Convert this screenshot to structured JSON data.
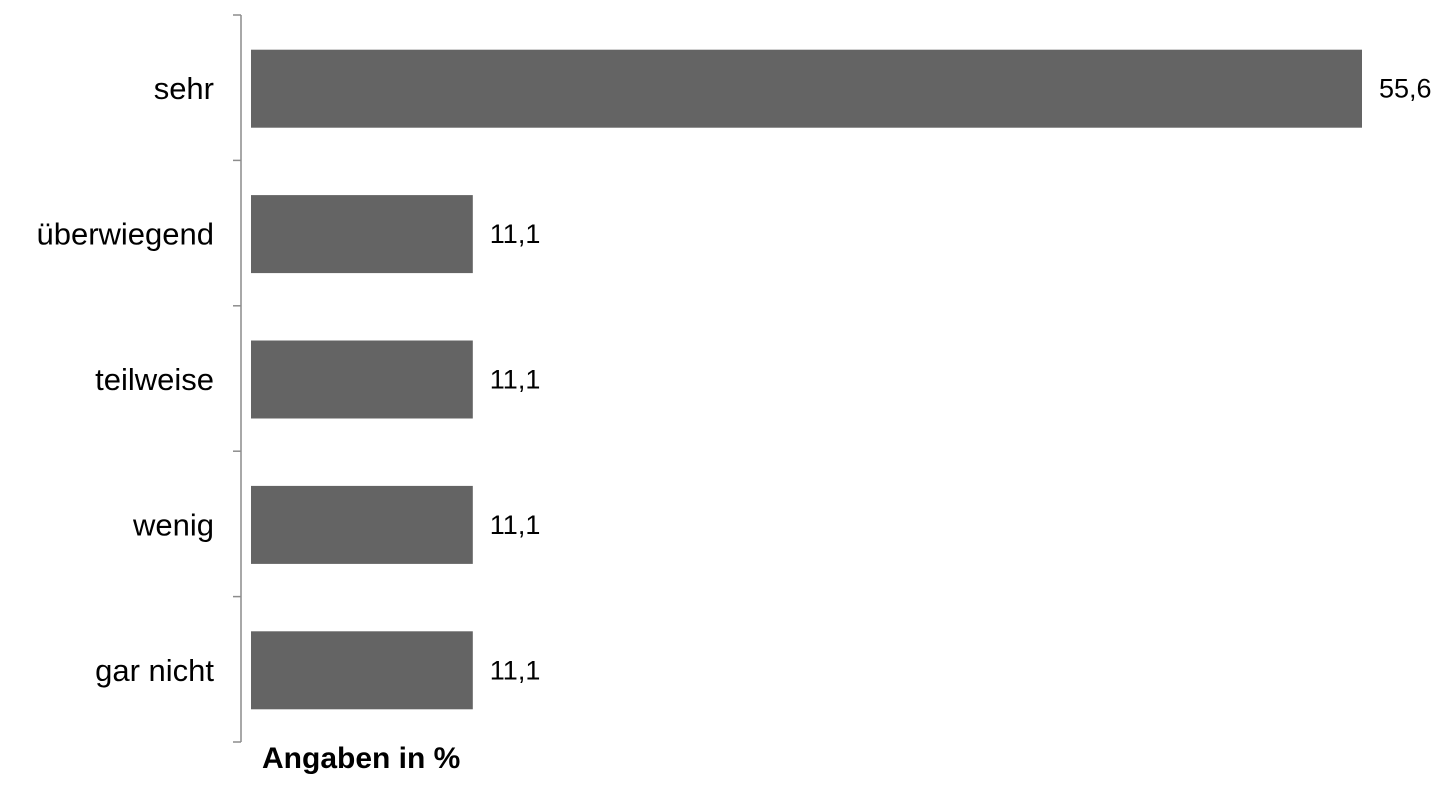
{
  "chart_data": {
    "type": "bar",
    "orientation": "horizontal",
    "categories": [
      "sehr",
      "überwiegend",
      "teilweise",
      "wenig",
      "gar nicht"
    ],
    "values": [
      55.6,
      11.1,
      11.1,
      11.1,
      11.1
    ],
    "value_labels": [
      "55,6",
      "11,1",
      "11,1",
      "11,1",
      "11,1"
    ],
    "xlabel": "Angaben in %",
    "ylabel": "",
    "xlim": [
      0,
      55.6
    ],
    "grid": false,
    "legend": "none",
    "bar_color": "#646464",
    "axis_color": "#8c8c8c"
  }
}
